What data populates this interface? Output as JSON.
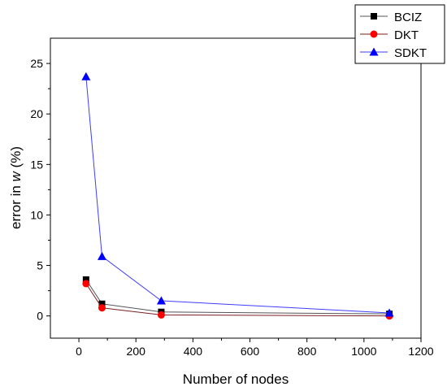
{
  "chart_data": {
    "type": "line",
    "title": "",
    "xlabel": "Number of nodes",
    "ylabel": {
      "prefix": "error in ",
      "variable": "w",
      "suffix": " (%)"
    },
    "xlim": [
      -100,
      1200
    ],
    "ylim": [
      -2.2,
      27.5
    ],
    "xticks": [
      0,
      200,
      400,
      600,
      800,
      1000,
      1200
    ],
    "yticks": [
      0,
      5,
      10,
      15,
      20,
      25
    ],
    "grid": false,
    "legend_position": "top-right",
    "x": [
      25,
      81,
      289,
      1089
    ],
    "series": [
      {
        "name": "BCIZ",
        "marker": "square",
        "color": "#000000",
        "line_color": "#555555",
        "values": [
          3.6,
          1.2,
          0.4,
          0.2
        ]
      },
      {
        "name": "DKT",
        "marker": "circle",
        "color": "#ff0000",
        "line_color": "#7a1f1f",
        "values": [
          3.2,
          0.8,
          0.1,
          0.0
        ]
      },
      {
        "name": "SDKT",
        "marker": "triangle",
        "color": "#0000ff",
        "line_color": "#3d3dff",
        "values": [
          23.7,
          5.9,
          1.5,
          0.3
        ]
      }
    ]
  }
}
